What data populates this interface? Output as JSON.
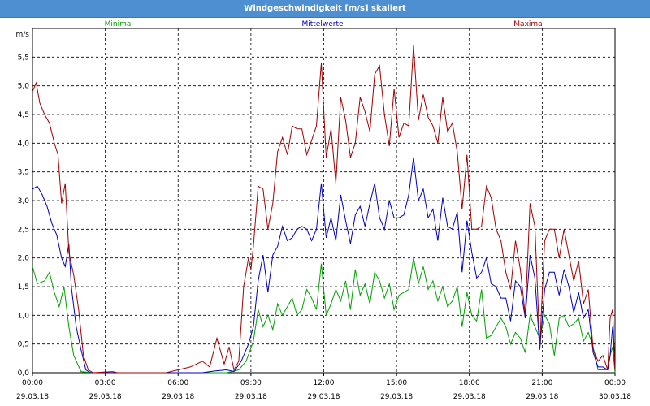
{
  "window": {
    "title": "Windgeschwindigkeit [m/s] skaliert"
  },
  "chart_data": {
    "type": "line",
    "title": "Windgeschwindigkeit [m/s] skaliert",
    "ylabel": "m/s",
    "ylim": [
      0,
      6
    ],
    "xlim": [
      0,
      24
    ],
    "grid": true,
    "legend_placement": "top",
    "y_ticks": [
      "0,0",
      "0,5",
      "1,0",
      "1,5",
      "2,0",
      "2,5",
      "3,0",
      "3,5",
      "4,0",
      "4,5",
      "5,0",
      "5,5"
    ],
    "x_ticks": [
      {
        "time": "00:00",
        "date": "29.03.18"
      },
      {
        "time": "03:00",
        "date": "29.03.18"
      },
      {
        "time": "06:00",
        "date": "29.03.18"
      },
      {
        "time": "09:00",
        "date": "29.03.18"
      },
      {
        "time": "12:00",
        "date": "29.03.18"
      },
      {
        "time": "15:00",
        "date": "29.03.18"
      },
      {
        "time": "18:00",
        "date": "29.03.18"
      },
      {
        "time": "21:00",
        "date": "29.03.18"
      },
      {
        "time": "00:00",
        "date": "30.03.18"
      }
    ],
    "series": [
      {
        "name": "Minima",
        "color": "#00a000",
        "points": [
          [
            0,
            1.85
          ],
          [
            0.2,
            1.55
          ],
          [
            0.5,
            1.6
          ],
          [
            0.7,
            1.75
          ],
          [
            0.9,
            1.4
          ],
          [
            1.1,
            1.15
          ],
          [
            1.3,
            1.5
          ],
          [
            1.5,
            0.8
          ],
          [
            1.7,
            0.3
          ],
          [
            2.0,
            0.02
          ],
          [
            2.5,
            0
          ],
          [
            5,
            0
          ],
          [
            7,
            0
          ],
          [
            8,
            0
          ],
          [
            8.5,
            0.05
          ],
          [
            8.8,
            0.2
          ],
          [
            9.1,
            0.55
          ],
          [
            9.3,
            1.1
          ],
          [
            9.5,
            0.8
          ],
          [
            9.7,
            1.0
          ],
          [
            9.9,
            0.75
          ],
          [
            10.1,
            1.2
          ],
          [
            10.3,
            1.0
          ],
          [
            10.5,
            1.15
          ],
          [
            10.7,
            1.3
          ],
          [
            10.9,
            1.0
          ],
          [
            11.1,
            1.1
          ],
          [
            11.3,
            1.45
          ],
          [
            11.5,
            1.3
          ],
          [
            11.7,
            1.1
          ],
          [
            11.9,
            1.9
          ],
          [
            12.1,
            1.0
          ],
          [
            12.3,
            1.2
          ],
          [
            12.5,
            1.45
          ],
          [
            12.7,
            1.25
          ],
          [
            12.9,
            1.6
          ],
          [
            13.1,
            1.1
          ],
          [
            13.3,
            1.8
          ],
          [
            13.5,
            1.35
          ],
          [
            13.7,
            1.55
          ],
          [
            13.9,
            1.2
          ],
          [
            14.1,
            1.75
          ],
          [
            14.3,
            1.6
          ],
          [
            14.5,
            1.3
          ],
          [
            14.7,
            1.55
          ],
          [
            14.9,
            1.1
          ],
          [
            15.1,
            1.35
          ],
          [
            15.3,
            1.4
          ],
          [
            15.5,
            1.45
          ],
          [
            15.7,
            2.0
          ],
          [
            15.9,
            1.55
          ],
          [
            16.1,
            1.85
          ],
          [
            16.3,
            1.45
          ],
          [
            16.5,
            1.6
          ],
          [
            16.7,
            1.25
          ],
          [
            16.9,
            1.5
          ],
          [
            17.1,
            1.15
          ],
          [
            17.3,
            1.25
          ],
          [
            17.5,
            1.5
          ],
          [
            17.7,
            0.8
          ],
          [
            17.9,
            1.4
          ],
          [
            18.1,
            1.0
          ],
          [
            18.3,
            0.9
          ],
          [
            18.5,
            1.45
          ],
          [
            18.7,
            0.6
          ],
          [
            18.9,
            0.65
          ],
          [
            19.1,
            0.8
          ],
          [
            19.3,
            0.95
          ],
          [
            19.5,
            0.8
          ],
          [
            19.7,
            0.5
          ],
          [
            19.9,
            0.7
          ],
          [
            20.1,
            0.6
          ],
          [
            20.3,
            0.35
          ],
          [
            20.5,
            1.0
          ],
          [
            20.7,
            0.8
          ],
          [
            20.9,
            0.6
          ],
          [
            21.1,
            1.0
          ],
          [
            21.3,
            0.85
          ],
          [
            21.5,
            0.3
          ],
          [
            21.7,
            0.95
          ],
          [
            21.9,
            1.0
          ],
          [
            22.1,
            0.8
          ],
          [
            22.3,
            0.85
          ],
          [
            22.5,
            0.95
          ],
          [
            22.7,
            0.55
          ],
          [
            22.9,
            0.7
          ],
          [
            23.1,
            0.45
          ],
          [
            23.3,
            0.05
          ],
          [
            23.5,
            0.05
          ],
          [
            23.7,
            0.05
          ],
          [
            23.8,
            0.3
          ],
          [
            23.9,
            0.45
          ],
          [
            24,
            0
          ]
        ]
      },
      {
        "name": "Mittelwerte",
        "color": "#0000c0",
        "points": [
          [
            0,
            3.2
          ],
          [
            0.2,
            3.25
          ],
          [
            0.4,
            3.1
          ],
          [
            0.6,
            2.9
          ],
          [
            0.8,
            2.6
          ],
          [
            1.0,
            2.4
          ],
          [
            1.2,
            2.0
          ],
          [
            1.35,
            1.85
          ],
          [
            1.5,
            2.25
          ],
          [
            1.6,
            1.5
          ],
          [
            1.8,
            0.8
          ],
          [
            2.0,
            0.4
          ],
          [
            2.2,
            0.05
          ],
          [
            2.4,
            0
          ],
          [
            5,
            0
          ],
          [
            7,
            0
          ],
          [
            7.5,
            0.03
          ],
          [
            8,
            0.05
          ],
          [
            8.3,
            0.02
          ],
          [
            8.6,
            0.2
          ],
          [
            8.9,
            0.5
          ],
          [
            9.1,
            0.8
          ],
          [
            9.3,
            1.6
          ],
          [
            9.5,
            2.05
          ],
          [
            9.7,
            1.4
          ],
          [
            9.9,
            2.05
          ],
          [
            10.1,
            2.2
          ],
          [
            10.3,
            2.55
          ],
          [
            10.5,
            2.3
          ],
          [
            10.7,
            2.35
          ],
          [
            10.9,
            2.5
          ],
          [
            11.1,
            2.55
          ],
          [
            11.3,
            2.5
          ],
          [
            11.5,
            2.3
          ],
          [
            11.7,
            2.5
          ],
          [
            11.9,
            3.3
          ],
          [
            12.1,
            2.35
          ],
          [
            12.3,
            2.7
          ],
          [
            12.5,
            2.3
          ],
          [
            12.7,
            3.1
          ],
          [
            12.9,
            2.65
          ],
          [
            13.1,
            2.25
          ],
          [
            13.3,
            2.75
          ],
          [
            13.5,
            2.9
          ],
          [
            13.7,
            2.55
          ],
          [
            13.9,
            2.95
          ],
          [
            14.1,
            3.3
          ],
          [
            14.3,
            2.7
          ],
          [
            14.5,
            2.5
          ],
          [
            14.7,
            3.0
          ],
          [
            14.9,
            2.7
          ],
          [
            15.1,
            2.7
          ],
          [
            15.3,
            2.75
          ],
          [
            15.5,
            3.1
          ],
          [
            15.7,
            3.75
          ],
          [
            15.9,
            3.0
          ],
          [
            16.1,
            3.2
          ],
          [
            16.3,
            2.7
          ],
          [
            16.5,
            2.85
          ],
          [
            16.7,
            2.3
          ],
          [
            16.9,
            3.05
          ],
          [
            17.1,
            2.55
          ],
          [
            17.3,
            2.5
          ],
          [
            17.5,
            2.8
          ],
          [
            17.7,
            1.75
          ],
          [
            17.9,
            2.65
          ],
          [
            18.1,
            2.1
          ],
          [
            18.3,
            1.65
          ],
          [
            18.5,
            1.75
          ],
          [
            18.7,
            2.0
          ],
          [
            18.9,
            1.55
          ],
          [
            19.1,
            1.5
          ],
          [
            19.3,
            1.3
          ],
          [
            19.5,
            1.3
          ],
          [
            19.7,
            0.9
          ],
          [
            19.9,
            1.6
          ],
          [
            20.1,
            1.5
          ],
          [
            20.3,
            0.95
          ],
          [
            20.5,
            2.05
          ],
          [
            20.7,
            1.65
          ],
          [
            20.9,
            0.4
          ],
          [
            21.1,
            1.45
          ],
          [
            21.3,
            1.75
          ],
          [
            21.5,
            1.75
          ],
          [
            21.7,
            1.35
          ],
          [
            21.9,
            1.8
          ],
          [
            22.1,
            1.5
          ],
          [
            22.3,
            1.05
          ],
          [
            22.5,
            1.4
          ],
          [
            22.7,
            0.95
          ],
          [
            22.9,
            1.1
          ],
          [
            23.1,
            0.35
          ],
          [
            23.3,
            0.1
          ],
          [
            23.5,
            0.1
          ],
          [
            23.7,
            0.05
          ],
          [
            23.8,
            0.3
          ],
          [
            23.9,
            0.8
          ],
          [
            24,
            0.05
          ]
        ]
      },
      {
        "name": "Maxima",
        "color": "#a00000",
        "points": [
          [
            0,
            4.9
          ],
          [
            0.15,
            5.05
          ],
          [
            0.3,
            4.7
          ],
          [
            0.5,
            4.5
          ],
          [
            0.7,
            4.35
          ],
          [
            0.9,
            4.0
          ],
          [
            1.05,
            3.8
          ],
          [
            1.2,
            2.95
          ],
          [
            1.35,
            3.3
          ],
          [
            1.5,
            2.1
          ],
          [
            1.7,
            1.7
          ],
          [
            1.9,
            1.1
          ],
          [
            2.1,
            0.3
          ],
          [
            2.3,
            0.05
          ],
          [
            2.5,
            0
          ],
          [
            3.3,
            0.02
          ],
          [
            3.5,
            0
          ],
          [
            5.5,
            0
          ],
          [
            6.0,
            0.05
          ],
          [
            6.5,
            0.1
          ],
          [
            7.0,
            0.2
          ],
          [
            7.3,
            0.1
          ],
          [
            7.6,
            0.6
          ],
          [
            7.9,
            0.15
          ],
          [
            8.1,
            0.45
          ],
          [
            8.3,
            0.05
          ],
          [
            8.5,
            0.2
          ],
          [
            8.7,
            1.5
          ],
          [
            8.9,
            2.0
          ],
          [
            9.0,
            1.8
          ],
          [
            9.1,
            2.2
          ],
          [
            9.3,
            3.25
          ],
          [
            9.5,
            3.2
          ],
          [
            9.7,
            2.5
          ],
          [
            9.9,
            2.95
          ],
          [
            10.1,
            3.85
          ],
          [
            10.3,
            4.1
          ],
          [
            10.5,
            3.8
          ],
          [
            10.7,
            4.3
          ],
          [
            10.9,
            4.25
          ],
          [
            11.1,
            4.25
          ],
          [
            11.3,
            3.8
          ],
          [
            11.5,
            4.05
          ],
          [
            11.7,
            4.3
          ],
          [
            11.9,
            5.4
          ],
          [
            12.1,
            3.75
          ],
          [
            12.3,
            4.25
          ],
          [
            12.5,
            3.3
          ],
          [
            12.7,
            4.8
          ],
          [
            12.9,
            4.4
          ],
          [
            13.1,
            3.75
          ],
          [
            13.3,
            4.0
          ],
          [
            13.5,
            4.8
          ],
          [
            13.7,
            4.55
          ],
          [
            13.9,
            4.2
          ],
          [
            14.1,
            5.2
          ],
          [
            14.3,
            5.35
          ],
          [
            14.5,
            4.5
          ],
          [
            14.7,
            3.95
          ],
          [
            14.9,
            4.95
          ],
          [
            15.1,
            4.1
          ],
          [
            15.3,
            4.35
          ],
          [
            15.5,
            4.3
          ],
          [
            15.7,
            5.7
          ],
          [
            15.9,
            4.4
          ],
          [
            16.1,
            4.85
          ],
          [
            16.3,
            4.45
          ],
          [
            16.5,
            4.3
          ],
          [
            16.7,
            4.0
          ],
          [
            16.9,
            4.8
          ],
          [
            17.1,
            4.2
          ],
          [
            17.3,
            4.35
          ],
          [
            17.5,
            3.85
          ],
          [
            17.7,
            2.85
          ],
          [
            17.9,
            3.8
          ],
          [
            18.1,
            2.5
          ],
          [
            18.3,
            2.5
          ],
          [
            18.5,
            2.55
          ],
          [
            18.7,
            3.25
          ],
          [
            18.9,
            3.05
          ],
          [
            19.1,
            2.5
          ],
          [
            19.3,
            2.3
          ],
          [
            19.5,
            1.75
          ],
          [
            19.7,
            1.45
          ],
          [
            19.9,
            2.3
          ],
          [
            20.1,
            1.8
          ],
          [
            20.3,
            1.0
          ],
          [
            20.5,
            2.95
          ],
          [
            20.7,
            2.55
          ],
          [
            20.9,
            0.45
          ],
          [
            21.1,
            2.3
          ],
          [
            21.3,
            2.5
          ],
          [
            21.5,
            2.5
          ],
          [
            21.7,
            2.0
          ],
          [
            21.9,
            2.5
          ],
          [
            22.1,
            2.05
          ],
          [
            22.3,
            1.6
          ],
          [
            22.5,
            1.95
          ],
          [
            22.7,
            1.2
          ],
          [
            22.9,
            1.45
          ],
          [
            23.1,
            0.4
          ],
          [
            23.3,
            0.2
          ],
          [
            23.5,
            0.3
          ],
          [
            23.7,
            0.05
          ],
          [
            23.8,
            0.95
          ],
          [
            23.9,
            1.1
          ],
          [
            24,
            0.05
          ]
        ]
      }
    ]
  }
}
